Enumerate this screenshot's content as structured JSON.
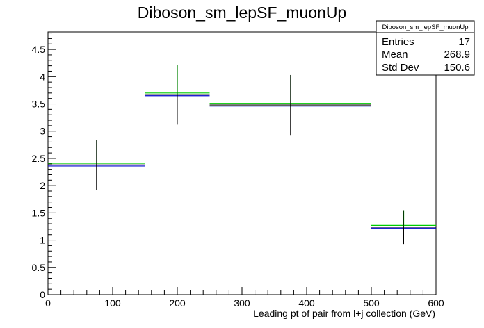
{
  "chart_data": {
    "type": "histogram",
    "title": "Diboson_sm_lepSF_muonUp",
    "xlabel": "Leading pt of pair from l+j collection (GeV)",
    "ylabel": "",
    "xlim": [
      0,
      600
    ],
    "ylim": [
      0,
      4.82
    ],
    "x_ticks": [
      "0",
      "100",
      "200",
      "300",
      "400",
      "500",
      "600"
    ],
    "y_ticks": [
      "0",
      "0.5",
      "1",
      "1.5",
      "2",
      "2.5",
      "3",
      "3.5",
      "4",
      "4.5"
    ],
    "bins": [
      {
        "xlow": 0,
        "xhigh": 150,
        "center": 75,
        "value": 2.38,
        "err_low": 1.92,
        "err_high": 2.84
      },
      {
        "xlow": 150,
        "xhigh": 250,
        "center": 200,
        "value": 3.67,
        "err_low": 3.12,
        "err_high": 4.22
      },
      {
        "xlow": 250,
        "xhigh": 500,
        "center": 375,
        "value": 3.48,
        "err_low": 2.93,
        "err_high": 4.03
      },
      {
        "xlow": 500,
        "xhigh": 600,
        "center": 550,
        "value": 1.24,
        "err_low": 0.93,
        "err_high": 1.55
      }
    ],
    "series": [
      {
        "name": "",
        "color": "#00cc00",
        "offset": 0.03
      },
      {
        "name": "",
        "color": "#000000",
        "offset": 0.0
      },
      {
        "name": "",
        "color": "#0000cc",
        "offset": -0.02
      }
    ],
    "grid": false,
    "stats_box": {
      "title": "Diboson_sm_lepSF_muonUp",
      "rows": [
        {
          "label": "Entries",
          "value": "17"
        },
        {
          "label": "Mean",
          "value": "268.9"
        },
        {
          "label": "Std Dev",
          "value": "150.6"
        }
      ],
      "placement": "top-right"
    }
  }
}
